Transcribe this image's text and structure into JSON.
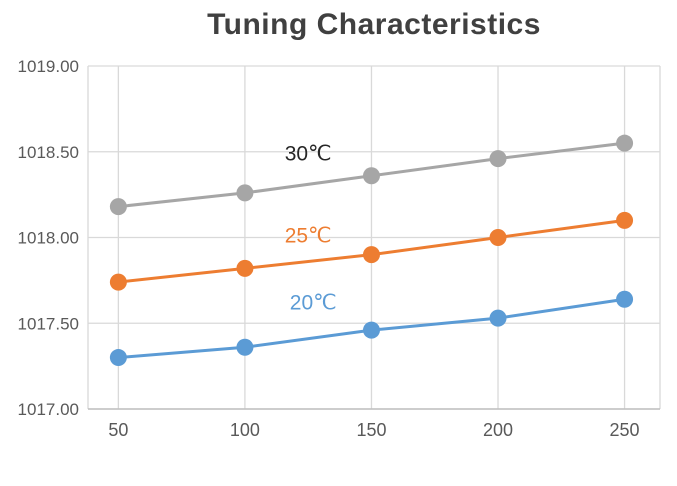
{
  "chart_data": {
    "type": "line",
    "title": "Tuning Characteristics",
    "xlabel": "",
    "ylabel": "",
    "x": [
      50,
      100,
      150,
      200,
      250
    ],
    "xticks": [
      50,
      100,
      150,
      200,
      250
    ],
    "yticks": [
      1017.0,
      1017.5,
      1018.0,
      1018.5,
      1019.0
    ],
    "xlim": [
      38,
      264
    ],
    "ylim": [
      1017.0,
      1019.0
    ],
    "grid": true,
    "legend_position": "inline-annotations",
    "ytick_decimals": 2,
    "series": [
      {
        "name": "30℃",
        "color": "#a6a6a6",
        "values": [
          1018.18,
          1018.26,
          1018.36,
          1018.46,
          1018.55
        ]
      },
      {
        "name": "25℃",
        "color": "#ed7d31",
        "values": [
          1017.74,
          1017.82,
          1017.9,
          1018.0,
          1018.1
        ]
      },
      {
        "name": "20℃",
        "color": "#5b9bd5",
        "values": [
          1017.3,
          1017.36,
          1017.46,
          1017.53,
          1017.64
        ]
      }
    ],
    "annotations": [
      {
        "text": "30℃",
        "x": 125,
        "y": 1018.45,
        "color": "#262626"
      },
      {
        "text": "25℃",
        "x": 125,
        "y": 1017.97,
        "color": "#ed7d31"
      },
      {
        "text": "20℃",
        "x": 127,
        "y": 1017.58,
        "color": "#5b9bd5"
      }
    ],
    "colors": {
      "grid": "#d9d9d9",
      "axis": "#bfbfbf",
      "tick_label": "#595959",
      "title": "#404040",
      "background": "#ffffff"
    }
  }
}
